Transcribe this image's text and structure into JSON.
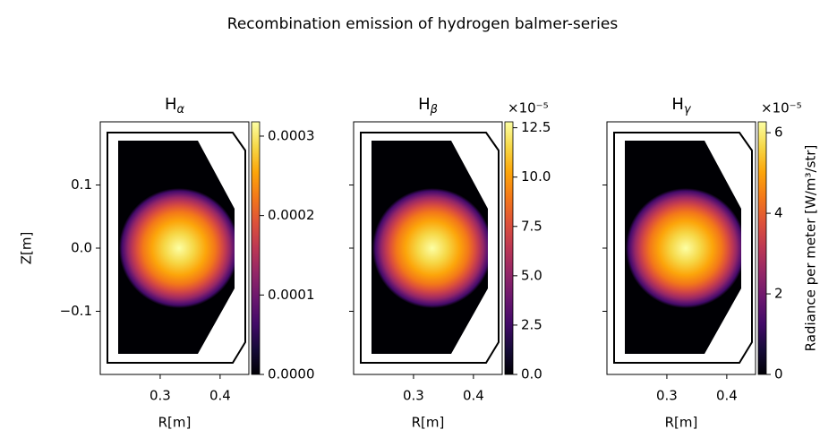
{
  "title": "Recombination emission of hydrogen balmer-series",
  "chart_data": [
    {
      "type": "heatmap",
      "title": {
        "base": "H",
        "sub": "α"
      },
      "xlabel": "R[m]",
      "ylabel": "Z[m]",
      "xlim": [
        0.2,
        0.448
      ],
      "ylim": [
        -0.2,
        0.2
      ],
      "xticks": [
        0.3,
        0.4
      ],
      "yticks": [
        {
          "value": 0.1,
          "label": "0.1"
        },
        {
          "value": 0,
          "label": "0.0"
        },
        {
          "value": -0.1,
          "label": "−0.1"
        }
      ],
      "colorbar": {
        "lim": [
          0,
          0.000318
        ],
        "ticks": [
          {
            "value": 0,
            "label": "0.0000"
          },
          {
            "value": 0.0001,
            "label": "0.0001"
          },
          {
            "value": 0.0002,
            "label": "0.0002"
          },
          {
            "value": 0.0003,
            "label": "0.0003"
          }
        ]
      }
    },
    {
      "type": "heatmap",
      "title": {
        "base": "H",
        "sub": "β"
      },
      "xlabel": "R[m]",
      "xlim": [
        0.2,
        0.448
      ],
      "ylim": [
        -0.2,
        0.2
      ],
      "xticks": [
        0.3,
        0.4
      ],
      "yticks": [
        0.1,
        0,
        -0.1
      ],
      "colorbar": {
        "lim": [
          0,
          12.8
        ],
        "offset": "×10⁻⁵",
        "ticks": [
          {
            "value": 0,
            "label": "0.0"
          },
          {
            "value": 2.5,
            "label": "2.5"
          },
          {
            "value": 5,
            "label": "5.0"
          },
          {
            "value": 7.5,
            "label": "7.5"
          },
          {
            "value": 10,
            "label": "10.0"
          },
          12.5
        ]
      }
    },
    {
      "type": "heatmap",
      "title": {
        "base": "H",
        "sub": "γ"
      },
      "xlabel": "R[m]",
      "xlim": [
        0.2,
        0.448
      ],
      "ylim": [
        -0.2,
        0.2
      ],
      "xticks": [
        0.3,
        0.4
      ],
      "yticks": [
        0.1,
        0,
        -0.1
      ],
      "colorbar": {
        "lim": [
          0,
          6.27
        ],
        "offset": "×10⁻⁵",
        "label": "Radiance per meter [W/m³/str]",
        "ticks": [
          0,
          2,
          4,
          6
        ]
      }
    }
  ]
}
